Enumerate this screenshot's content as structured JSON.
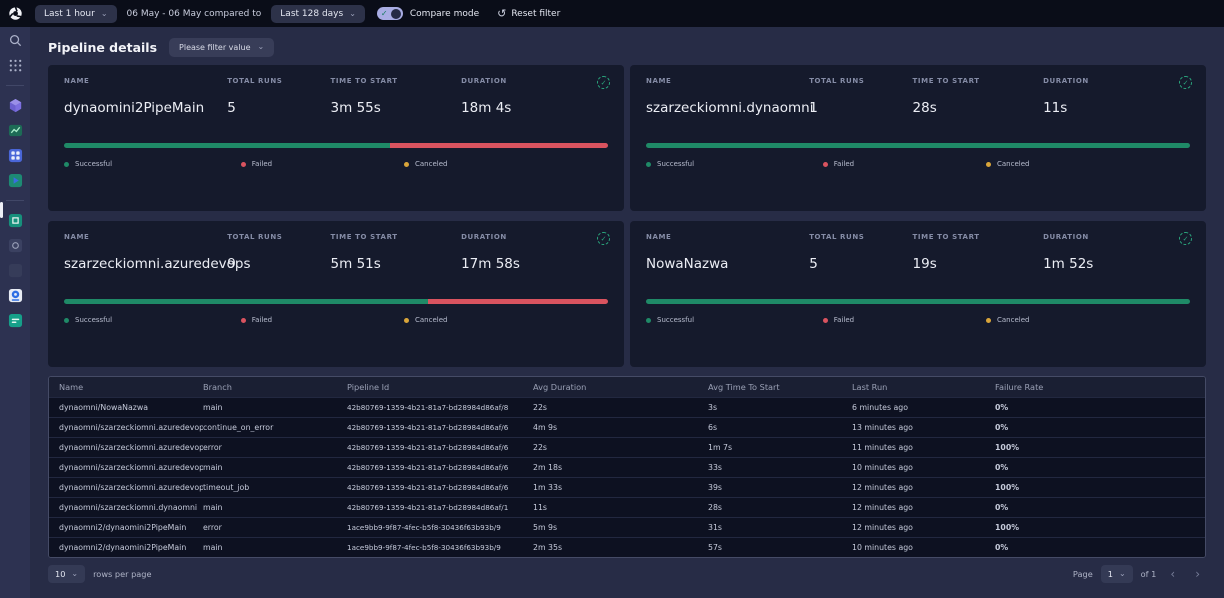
{
  "topbar": {
    "time_range": "Last 1 hour",
    "compare_text": "06 May - 06 May compared to",
    "compare_range": "Last 128 days",
    "compare_mode_label": "Compare mode",
    "reset_label": "Reset filter"
  },
  "header": {
    "title": "Pipeline details",
    "filter_placeholder": "Please filter value"
  },
  "icons": {
    "chevron_down": "⌄",
    "reset": "↺",
    "check": "✓",
    "page_prev": "‹",
    "page_next": "›"
  },
  "cards": {
    "labels": {
      "name": "NAME",
      "total_runs": "TOTAL RUNS",
      "time_to_start": "TIME TO START",
      "duration": "DURATION"
    },
    "legend": [
      {
        "label": "Successful",
        "color": "#1f8a67"
      },
      {
        "label": "Failed",
        "color": "#d9535f"
      },
      {
        "label": "Canceled",
        "color": "#d9a53a"
      }
    ],
    "items": [
      {
        "name": "dynaomini2PipeMain",
        "total_runs": "5",
        "time_to_start": "3m 55s",
        "duration": "18m 4s",
        "success_pct": 60,
        "failed_pct": 40,
        "canceled_pct": 0
      },
      {
        "name": "szarzeckiomni.dynaomni",
        "total_runs": "1",
        "time_to_start": "28s",
        "duration": "11s",
        "success_pct": 100,
        "failed_pct": 0,
        "canceled_pct": 0
      },
      {
        "name": "szarzeckiomni.azuredevops",
        "total_runs": "9",
        "time_to_start": "5m 51s",
        "duration": "17m 58s",
        "success_pct": 67,
        "failed_pct": 33,
        "canceled_pct": 0
      },
      {
        "name": "NowaNazwa",
        "total_runs": "5",
        "time_to_start": "19s",
        "duration": "1m 52s",
        "success_pct": 100,
        "failed_pct": 0,
        "canceled_pct": 0
      }
    ]
  },
  "table": {
    "columns": [
      "Name",
      "Branch",
      "Pipeline Id",
      "Avg Duration",
      "Avg Time To Start",
      "Last Run",
      "Failure Rate"
    ],
    "failure_colors": {
      "ok": "#13996e",
      "bad": "#e2334b"
    },
    "rows": [
      {
        "name": "dynaomni/NowaNazwa",
        "branch": "main",
        "pipeline_id": "42b80769-1359-4b21-81a7-bd28984d86af/8",
        "avg_duration": "22s",
        "avg_time_to_start": "3s",
        "last_run": "6 minutes ago",
        "failure_rate": "0%",
        "failure_class": "fr-ok"
      },
      {
        "name": "dynaomni/szarzeckiomni.azuredevops",
        "branch": "continue_on_error",
        "pipeline_id": "42b80769-1359-4b21-81a7-bd28984d86af/6",
        "avg_duration": "4m 9s",
        "avg_time_to_start": "6s",
        "last_run": "13 minutes ago",
        "failure_rate": "0%",
        "failure_class": "fr-ok"
      },
      {
        "name": "dynaomni/szarzeckiomni.azuredevops",
        "branch": "error",
        "pipeline_id": "42b80769-1359-4b21-81a7-bd28984d86af/6",
        "avg_duration": "22s",
        "avg_time_to_start": "1m 7s",
        "last_run": "11 minutes ago",
        "failure_rate": "100%",
        "failure_class": "fr-bad"
      },
      {
        "name": "dynaomni/szarzeckiomni.azuredevops",
        "branch": "main",
        "pipeline_id": "42b80769-1359-4b21-81a7-bd28984d86af/6",
        "avg_duration": "2m 18s",
        "avg_time_to_start": "33s",
        "last_run": "10 minutes ago",
        "failure_rate": "0%",
        "failure_class": "fr-ok"
      },
      {
        "name": "dynaomni/szarzeckiomni.azuredevops",
        "branch": "timeout_job",
        "pipeline_id": "42b80769-1359-4b21-81a7-bd28984d86af/6",
        "avg_duration": "1m 33s",
        "avg_time_to_start": "39s",
        "last_run": "12 minutes ago",
        "failure_rate": "100%",
        "failure_class": "fr-bad"
      },
      {
        "name": "dynaomni/szarzeckiomni.dynaomni",
        "branch": "main",
        "pipeline_id": "42b80769-1359-4b21-81a7-bd28984d86af/1",
        "avg_duration": "11s",
        "avg_time_to_start": "28s",
        "last_run": "12 minutes ago",
        "failure_rate": "0%",
        "failure_class": "fr-ok"
      },
      {
        "name": "dynaomni2/dynaomini2PipeMain",
        "branch": "error",
        "pipeline_id": "1ace9bb9-9f87-4fec-b5f8-30436f63b93b/9",
        "avg_duration": "5m 9s",
        "avg_time_to_start": "31s",
        "last_run": "12 minutes ago",
        "failure_rate": "100%",
        "failure_class": "fr-bad"
      },
      {
        "name": "dynaomni2/dynaomini2PipeMain",
        "branch": "main",
        "pipeline_id": "1ace9bb9-9f87-4fec-b5f8-30436f63b93b/9",
        "avg_duration": "2m 35s",
        "avg_time_to_start": "57s",
        "last_run": "10 minutes ago",
        "failure_rate": "0%",
        "failure_class": "fr-ok"
      }
    ]
  },
  "pagination": {
    "rows_per_page_value": "10",
    "rows_per_page_label": "rows per page",
    "page_label": "Page",
    "page_value": "1",
    "total_label": "of 1"
  }
}
